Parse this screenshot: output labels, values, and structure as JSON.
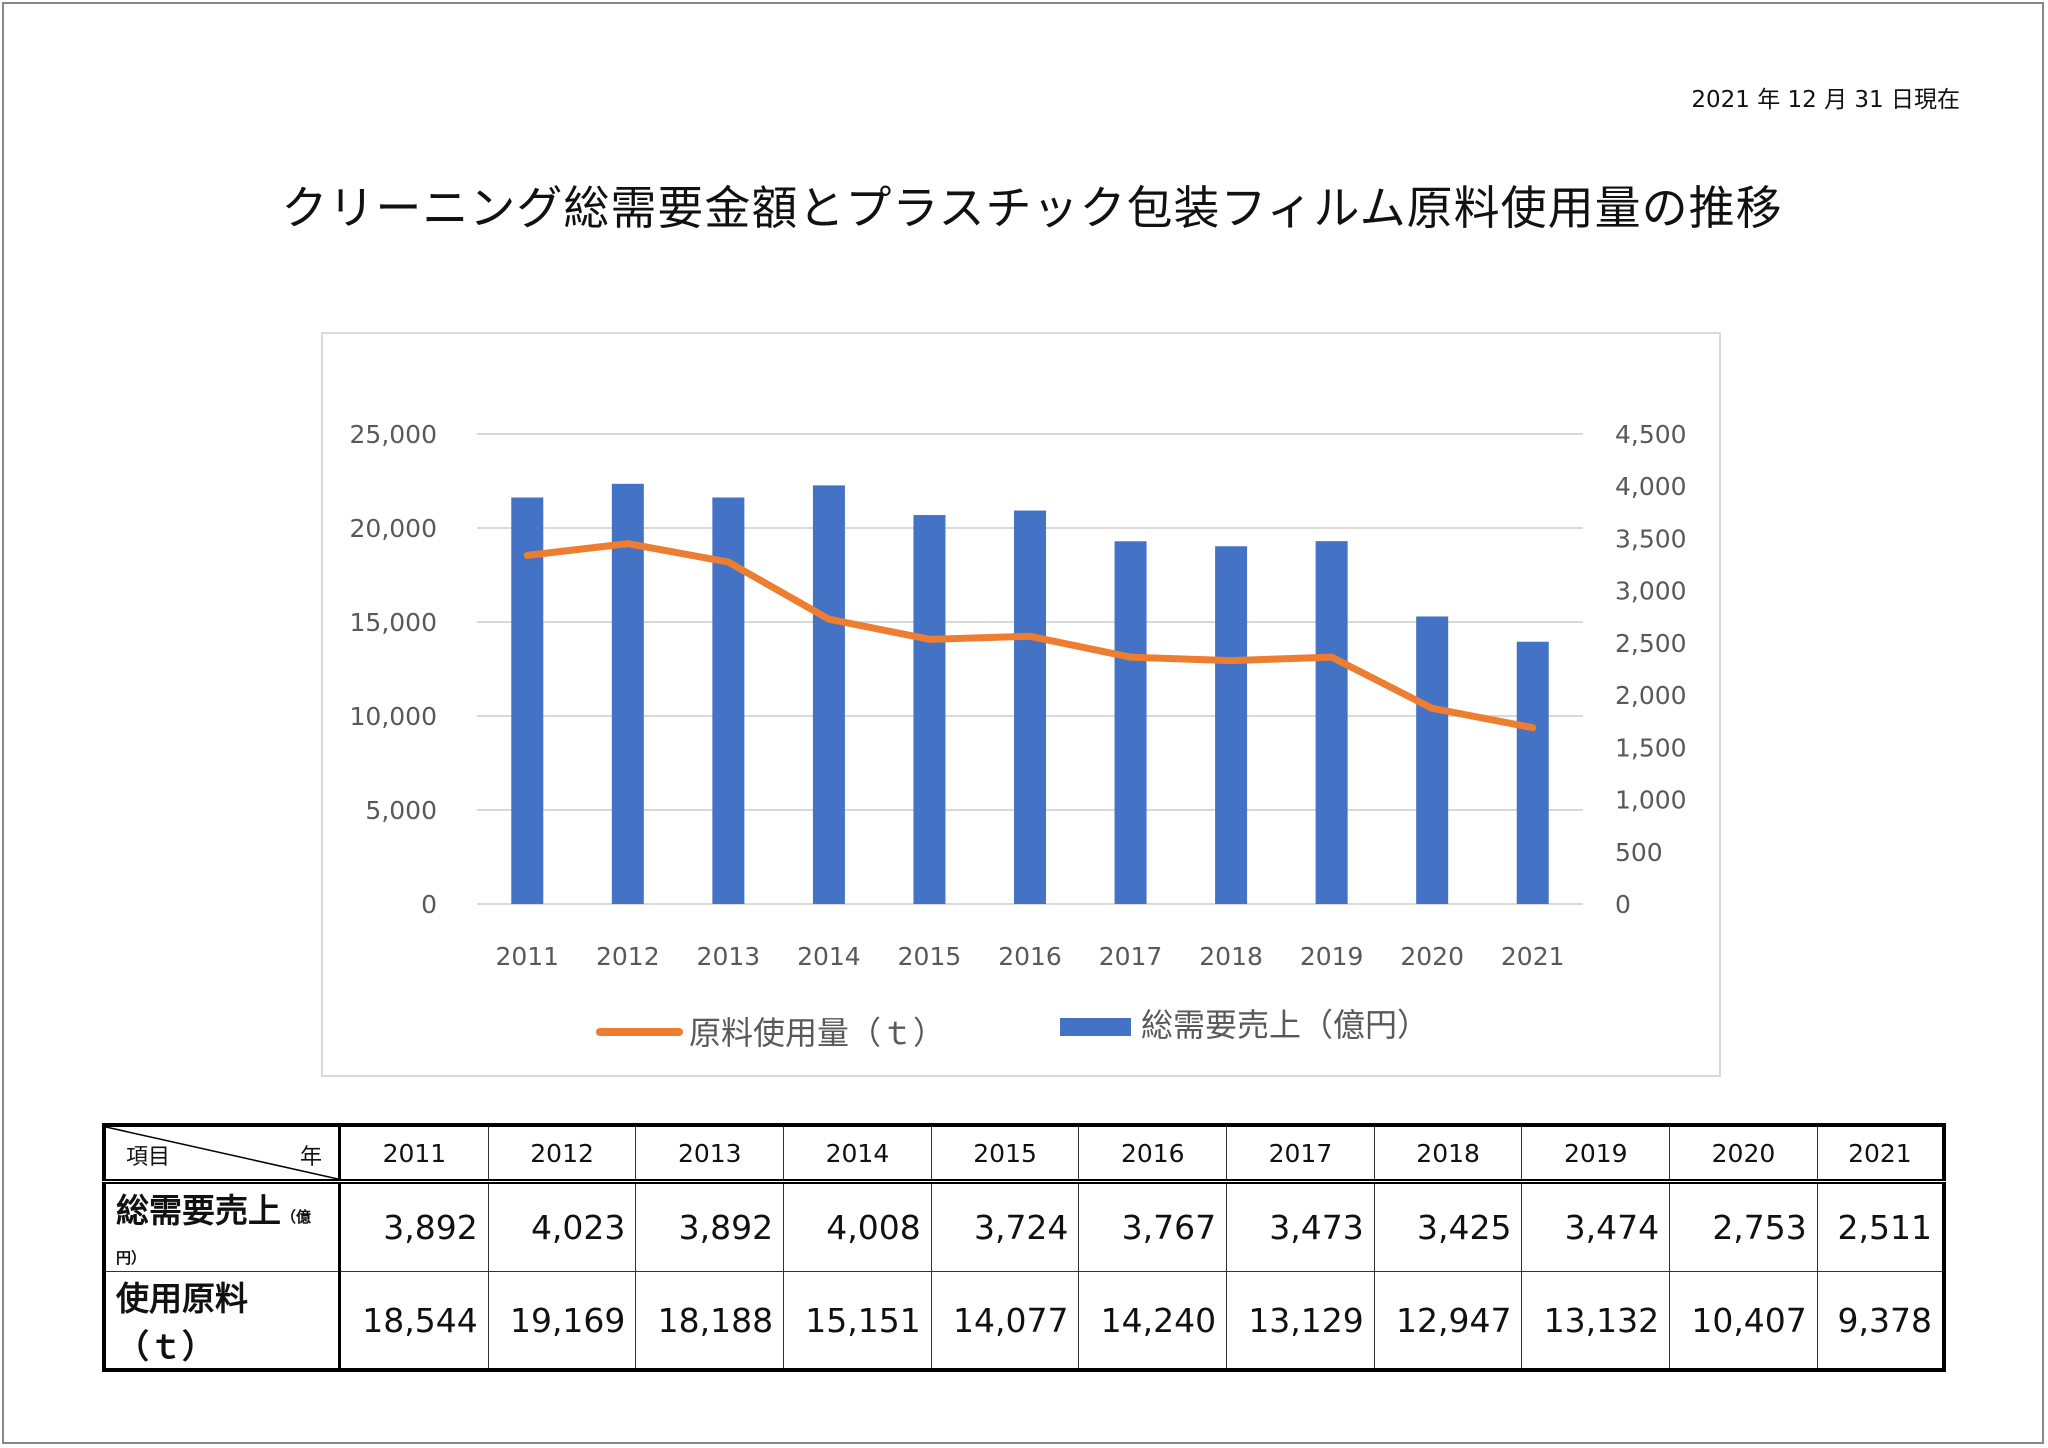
{
  "header": {
    "as_of": "2021 年 12 月 31 日現在"
  },
  "title": "クリーニング総需要金額とプラスチック包装フィルム原料使用量の推移",
  "colors": {
    "bar": "#4472C4",
    "line": "#ED7D31",
    "grid": "#D9D9D9",
    "tick": "#595959"
  },
  "chart_data": {
    "type": "bar+line",
    "categories": [
      "2011",
      "2012",
      "2013",
      "2014",
      "2015",
      "2016",
      "2017",
      "2018",
      "2019",
      "2020",
      "2021"
    ],
    "series": [
      {
        "name": "原料使用量（ｔ）",
        "type": "line",
        "axis": "left",
        "values": [
          18544,
          19169,
          18188,
          15151,
          14077,
          14240,
          13129,
          12947,
          13132,
          10407,
          9378
        ]
      },
      {
        "name": "総需要売上（億円）",
        "type": "bar",
        "axis": "right",
        "values": [
          3892,
          4023,
          3892,
          4008,
          3724,
          3767,
          3473,
          3425,
          3474,
          2753,
          2511
        ]
      }
    ],
    "left_axis": {
      "ylim": [
        0,
        25000
      ],
      "ticks": [
        "0",
        "5,000",
        "10,000",
        "15,000",
        "20,000",
        "25,000"
      ]
    },
    "right_axis": {
      "ylim": [
        0,
        4500
      ],
      "ticks": [
        "0",
        "500",
        "1,000",
        "1,500",
        "2,000",
        "2,500",
        "3,000",
        "3,500",
        "4,000",
        "4,500"
      ]
    },
    "grid": true,
    "legend_position": "bottom"
  },
  "table": {
    "corner_left": "項目",
    "corner_right": "年",
    "years": [
      "2011",
      "2012",
      "2013",
      "2014",
      "2015",
      "2016",
      "2017",
      "2018",
      "2019",
      "2020",
      "2021"
    ],
    "rows": [
      {
        "label": "総需要売上",
        "unit": "（億円）",
        "values": [
          "3,892",
          "4,023",
          "3,892",
          "4,008",
          "3,724",
          "3,767",
          "3,473",
          "3,425",
          "3,474",
          "2,753",
          "2,511"
        ]
      },
      {
        "label": "使用原料（ｔ）",
        "unit": "",
        "values": [
          "18,544",
          "19,169",
          "18,188",
          "15,151",
          "14,077",
          "14,240",
          "13,129",
          "12,947",
          "13,132",
          "10,407",
          "9,378"
        ]
      }
    ]
  }
}
